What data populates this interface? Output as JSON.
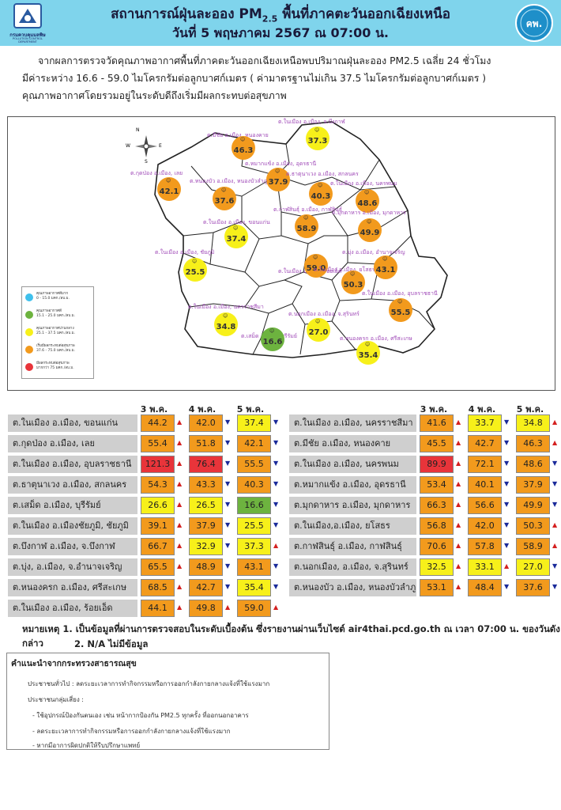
{
  "header": {
    "title": "สถานการณ์ฝุ่นละออง PM2.5 พื้นที่ภาคตะวันออกเฉียงเหนือ",
    "title_main": "สถานการณ์ฝุ่นละออง PM",
    "title_sub": "2.5",
    "title_end": " พื้นที่ภาคตะวันออกเฉียงเหนือ",
    "date": "วันที่ 5 พฤษภาคม 2567 ณ 07:00 น.",
    "logo_left_text": "กรมควบคุมมลพิษ",
    "logo_left_sub": "POLLUTION CONTROL DEPARTMENT",
    "logo_right_text": "คพ."
  },
  "summary": {
    "line1": "จากผลการตรวจวัดคุณภาพอากาศพื้นที่ภาคตะวันออกเฉียงเหนือพบปริมาณฝุ่นละออง PM2.5 เฉลี่ย 24 ชั่วโมง",
    "line2": "มีค่าระหว่าง 16.6 - 59.0 ไมโครกรัมต่อลูกบาศก์เมตร ( ค่ามาตรฐานไม่เกิน 37.5 ไมโครกรัมต่อลูกบาศก์เมตร )",
    "line3": "คุณภาพอากาศโดยรวมอยู่ในระดับดีถึงเริ่มมีผลกระทบต่อสุขภาพ"
  },
  "legend": [
    {
      "label": "คุณภาพอากาศดีมาก",
      "range": "0 - 15.0 มคก./ลบ.ม.",
      "color": "#3fc0ec"
    },
    {
      "label": "คุณภาพอากาศดี",
      "range": "15.1 - 25.0 มคก./ลบ.ม.",
      "color": "#6db33f"
    },
    {
      "label": "คุณภาพอากาศปานกลาง",
      "range": "25.1 - 37.5 มคก./ลบ.ม.",
      "color": "#f7f01a"
    },
    {
      "label": "เริ่มมีผลกระทบต่อสุขภาพ",
      "range": "37.6 - 75.0 มคก./ลบ.ม.",
      "color": "#f29a1d"
    },
    {
      "label": "มีผลกระทบต่อสุขภาพ",
      "range": "มากกว่า 75 มคก./ลบ.ม.",
      "color": "#e8343a"
    }
  ],
  "compass": {
    "n": "N",
    "s": "S",
    "e": "E",
    "w": "W"
  },
  "map_stations": [
    {
      "label": "ต.ในเมือง อ.เมือง, จ.บึงกาฬ",
      "value": "37.3",
      "color": "#f7f01a"
    },
    {
      "label": "ต.มีชัย อ.เมือง, หนองคาย",
      "value": "46.3",
      "color": "#f29a1d"
    },
    {
      "label": "ต.กุดป่อง อ.เมือง, เลย",
      "value": "42.1",
      "color": "#f29a1d"
    },
    {
      "label": "ต.หมากแข้ง อ.เมือง, อุดรธานี",
      "value": "37.9",
      "color": "#f29a1d"
    },
    {
      "label": "ต.ธาตุนาเวง อ.เมือง, สกลนคร",
      "value": "40.3",
      "color": "#f29a1d"
    },
    {
      "label": "ต.ในเมือง อ.เมือง, นครพนม",
      "value": "48.6",
      "color": "#f29a1d"
    },
    {
      "label": "ต.หนองบัว อ.เมือง, หนองบัวลำภู",
      "value": "37.6",
      "color": "#f29a1d"
    },
    {
      "label": "ต.กาฬสินธุ์ อ.เมือง, กาฬสินธุ์",
      "value": "58.9",
      "color": "#f29a1d"
    },
    {
      "label": "ต.มุกดาหาร อ.เมือง, มุกดาหาร",
      "value": "49.9",
      "color": "#f29a1d"
    },
    {
      "label": "ต.ในเมือง อ.เมือง, ขอนแก่น",
      "value": "37.4",
      "color": "#f7f01a"
    },
    {
      "label": "ต.ในเมือง อ.เมือง, ชัยภูมิ",
      "value": "25.5",
      "color": "#f7f01a"
    },
    {
      "label": "ต.ในเมือง อ.เมือง, ร้อยเอ็ด",
      "value": "59.0",
      "color": "#f29a1d"
    },
    {
      "label": "ต.ในเมือง อ.เมือง, ยโสธร",
      "value": "50.3",
      "color": "#f29a1d"
    },
    {
      "label": "ต.บุ่ง อ.เมือง, อำนาจเจริญ",
      "value": "43.1",
      "color": "#f29a1d"
    },
    {
      "label": "ต.ในเมือง อ.เมือง, อุบลราชธานี",
      "value": "55.5",
      "color": "#f29a1d"
    },
    {
      "label": "ต.ในเมือง อ.เมือง, นครราชสีมา",
      "value": "34.8",
      "color": "#f7f01a"
    },
    {
      "label": "ต.เสม็ด อ.เมือง, บุรีรัมย์",
      "value": "16.6",
      "color": "#6db33f"
    },
    {
      "label": "ต.นอกเมือง อ.เมือง, จ.สุรินทร์",
      "value": "27.0",
      "color": "#f7f01a"
    },
    {
      "label": "ต.หนองครก อ.เมือง, ศรีสะเกษ",
      "value": "35.4",
      "color": "#f7f01a"
    }
  ],
  "table": {
    "days": [
      "3 พ.ค.",
      "4 พ.ค.",
      "5 พ.ค."
    ],
    "left": [
      {
        "name": "ต.ในเมือง อ.เมือง, ขอนแก่น",
        "v": [
          "44.2",
          "42.0",
          "37.4"
        ],
        "c": [
          "#f29a1d",
          "#f29a1d",
          "#f7f01a"
        ],
        "a": [
          "up",
          "dn",
          "dn"
        ]
      },
      {
        "name": "ต.กุดป่อง อ.เมือง, เลย",
        "v": [
          "55.4",
          "51.8",
          "42.1"
        ],
        "c": [
          "#f29a1d",
          "#f29a1d",
          "#f29a1d"
        ],
        "a": [
          "up",
          "dn",
          "dn"
        ]
      },
      {
        "name": "ต.ในเมือง อ.เมือง, อุบลราชธานี",
        "v": [
          "121.3",
          "76.4",
          "55.5"
        ],
        "c": [
          "#e8343a",
          "#e8343a",
          "#f29a1d"
        ],
        "a": [
          "up",
          "dn",
          "dn"
        ]
      },
      {
        "name": "ต.ธาตุนาเวง อ.เมือง, สกลนคร",
        "v": [
          "54.3",
          "43.3",
          "40.3"
        ],
        "c": [
          "#f29a1d",
          "#f29a1d",
          "#f29a1d"
        ],
        "a": [
          "up",
          "dn",
          "dn"
        ]
      },
      {
        "name": "ต.เสม็ด อ.เมือง, บุรีรัมย์",
        "v": [
          "26.6",
          "26.5",
          "16.6"
        ],
        "c": [
          "#f7f01a",
          "#f7f01a",
          "#6db33f"
        ],
        "a": [
          "up",
          "dn",
          "dn"
        ]
      },
      {
        "name": "ต.ในเมือง อ.เมืองชัยภูมิ, ชัยภูมิ",
        "v": [
          "39.1",
          "37.9",
          "25.5"
        ],
        "c": [
          "#f29a1d",
          "#f29a1d",
          "#f7f01a"
        ],
        "a": [
          "up",
          "dn",
          "dn"
        ]
      },
      {
        "name": "ต.บึงกาฬ อ.เมือง, จ.บึงกาฬ",
        "v": [
          "66.7",
          "32.9",
          "37.3"
        ],
        "c": [
          "#f29a1d",
          "#f7f01a",
          "#f7f01a"
        ],
        "a": [
          "up",
          "dn",
          "up"
        ]
      },
      {
        "name": "ต.บุ่ง, อ.เมือง, จ.อำนาจเจริญ",
        "v": [
          "65.5",
          "48.9",
          "43.1"
        ],
        "c": [
          "#f29a1d",
          "#f29a1d",
          "#f29a1d"
        ],
        "a": [
          "up",
          "dn",
          "dn"
        ]
      },
      {
        "name": "ต.หนองครก อ.เมือง, ศรีสะเกษ",
        "v": [
          "68.5",
          "42.7",
          "35.4"
        ],
        "c": [
          "#f29a1d",
          "#f29a1d",
          "#f7f01a"
        ],
        "a": [
          "up",
          "dn",
          "dn"
        ]
      },
      {
        "name": "ต.ในเมือง อ.เมือง, ร้อยเอ็ด",
        "v": [
          "44.1",
          "49.8",
          "59.0"
        ],
        "c": [
          "#f29a1d",
          "#f29a1d",
          "#f29a1d"
        ],
        "a": [
          "up",
          "up",
          "up"
        ]
      }
    ],
    "right": [
      {
        "name": "ต.ในเมือง อ.เมือง, นครราชสีมา",
        "v": [
          "41.6",
          "33.7",
          "34.8"
        ],
        "c": [
          "#f29a1d",
          "#f7f01a",
          "#f7f01a"
        ],
        "a": [
          "up",
          "dn",
          "up"
        ]
      },
      {
        "name": "ต.มีชัย อ.เมือง, หนองคาย",
        "v": [
          "45.5",
          "42.7",
          "46.3"
        ],
        "c": [
          "#f29a1d",
          "#f29a1d",
          "#f29a1d"
        ],
        "a": [
          "up",
          "dn",
          "up"
        ]
      },
      {
        "name": "ต.ในเมือง อ.เมือง, นครพนม",
        "v": [
          "89.9",
          "72.1",
          "48.6"
        ],
        "c": [
          "#e8343a",
          "#f29a1d",
          "#f29a1d"
        ],
        "a": [
          "up",
          "dn",
          "dn"
        ]
      },
      {
        "name": "ต.หมากแข้ง อ.เมือง, อุดรธานี",
        "v": [
          "53.4",
          "40.1",
          "37.9"
        ],
        "c": [
          "#f29a1d",
          "#f29a1d",
          "#f29a1d"
        ],
        "a": [
          "up",
          "dn",
          "dn"
        ]
      },
      {
        "name": "ต.มุกดาหาร อ.เมือง, มุกดาหาร",
        "v": [
          "66.3",
          "56.6",
          "49.9"
        ],
        "c": [
          "#f29a1d",
          "#f29a1d",
          "#f29a1d"
        ],
        "a": [
          "up",
          "dn",
          "dn"
        ]
      },
      {
        "name": "ต.ในเมือง,อ.เมือง, ยโสธร",
        "v": [
          "56.8",
          "42.0",
          "50.3"
        ],
        "c": [
          "#f29a1d",
          "#f29a1d",
          "#f29a1d"
        ],
        "a": [
          "up",
          "dn",
          "up"
        ]
      },
      {
        "name": "ต.กาฬสินธุ์ อ.เมือง, กาฬสินธุ์",
        "v": [
          "70.6",
          "57.8",
          "58.9"
        ],
        "c": [
          "#f29a1d",
          "#f29a1d",
          "#f29a1d"
        ],
        "a": [
          "up",
          "dn",
          "up"
        ]
      },
      {
        "name": "ต.นอกเมือง, อ.เมือง, จ.สุรินทร์",
        "v": [
          "32.5",
          "33.1",
          "27.0"
        ],
        "c": [
          "#f7f01a",
          "#f7f01a",
          "#f7f01a"
        ],
        "a": [
          "up",
          "up",
          "dn"
        ]
      },
      {
        "name": "ต.หนองบัว อ.เมือง, หนองบัวลำภู",
        "v": [
          "53.1",
          "48.4",
          "37.6"
        ],
        "c": [
          "#f29a1d",
          "#f29a1d",
          "#f29a1d"
        ],
        "a": [
          "up",
          "dn",
          "dn"
        ]
      }
    ]
  },
  "notes": {
    "line1": "หมายเหตุ 1. เป็นข้อมูลที่ผ่านการตรวจสอบในระดับเบื้องต้น ซึ่งรายงานผ่านเว็บไซต์ air4thai.pcd.go.th ณ เวลา 07:00 น. ของวันดังกล่าว",
    "line2": "2. N/A ไม่มีข้อมูล"
  },
  "advice": {
    "title": "คำแนะนำจากกระทรวงสาธารณสุข",
    "general": "ประชาชนทั่วไป : ลดระยะเวลาการทำกิจกรรมหรือการออกกำลังกายกลางแจ้งที่ใช้แรงมาก",
    "risk_group": "ประชาชนกลุ่มเสี่ยง :",
    "items": [
      "- ใช้อุปกรณ์ป้องกันตนเอง เช่น หน้ากากป้องกัน PM2.5 ทุกครั้ง  ที่ออกนอกอาคาร",
      "- ลดระยะเวลาการทำกิจกรรมหรือการออกกำลังกายกลางแจ้งที่ใช้แรงมาก",
      "- หากมีอาการผิดปกติให้รีบปรึกษาแพทย์"
    ]
  }
}
